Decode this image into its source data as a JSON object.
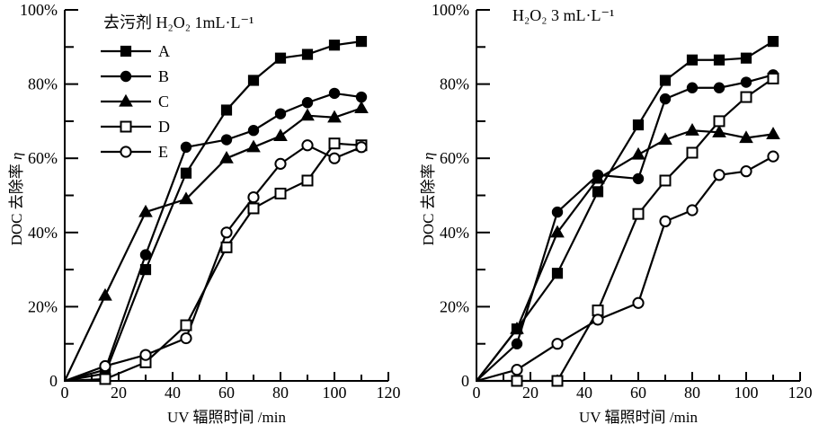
{
  "figure_name": "DOC removal rate vs UV irradiation time, two H2O2 doses",
  "colors": {
    "foreground": "#000000",
    "background": "#ffffff"
  },
  "chart_data": [
    {
      "type": "line",
      "title": "去污剂 H₂O₂ 1mL·L⁻¹",
      "xlabel": "UV 辐照时间 /min",
      "ylabel": "DOC 去除率 η",
      "xlim": [
        0,
        120
      ],
      "ylim": [
        0,
        100
      ],
      "grid": false,
      "x_tick_labels": [
        "0",
        "20",
        "40",
        "60",
        "80",
        "100",
        "120"
      ],
      "y_tick_labels": [
        "0",
        "20%",
        "40%",
        "60%",
        "80%",
        "100%"
      ],
      "x_minor_tick_step": 10,
      "legend": true,
      "legend_position": "top-left-inside",
      "x": [
        0,
        15,
        30,
        45,
        60,
        70,
        80,
        90,
        100,
        110
      ],
      "series": [
        {
          "name": "A",
          "marker": "filled-square",
          "values": [
            0,
            2,
            30,
            56,
            73,
            81,
            87,
            88,
            90.5,
            91.5
          ]
        },
        {
          "name": "B",
          "marker": "filled-circle",
          "values": [
            0,
            3,
            34,
            63,
            65,
            67.5,
            72,
            75,
            77.5,
            76.5
          ]
        },
        {
          "name": "C",
          "marker": "filled-triangle",
          "values": [
            0,
            23,
            45.5,
            49,
            60,
            63,
            66,
            71.5,
            71,
            73.5
          ]
        },
        {
          "name": "D",
          "marker": "open-square",
          "values": [
            0,
            0.5,
            5,
            15,
            36,
            46.5,
            50.5,
            54,
            64,
            63.5
          ]
        },
        {
          "name": "E",
          "marker": "open-circle",
          "values": [
            0,
            4,
            7,
            11.5,
            40,
            49.5,
            58.5,
            63.5,
            60,
            63
          ]
        }
      ]
    },
    {
      "type": "line",
      "title": "H₂O₂ 3 mL·L⁻¹",
      "xlabel": "UV 辐照时间 /min",
      "ylabel": "DOC 去除率 η",
      "xlim": [
        0,
        120
      ],
      "ylim": [
        0,
        100
      ],
      "grid": false,
      "x_tick_labels": [
        "0",
        "20",
        "40",
        "60",
        "80",
        "100",
        "120"
      ],
      "y_tick_labels": [
        "0",
        "20%",
        "40%",
        "60%",
        "80%",
        "100%"
      ],
      "x_minor_tick_step": 10,
      "legend": false,
      "x": [
        0,
        15,
        30,
        45,
        60,
        70,
        80,
        90,
        100,
        110
      ],
      "series": [
        {
          "name": "A",
          "marker": "filled-square",
          "values": [
            0,
            14,
            29,
            51,
            69,
            81,
            86.5,
            86.5,
            87,
            91.5
          ]
        },
        {
          "name": "B",
          "marker": "filled-circle",
          "values": [
            0,
            10,
            45.5,
            55.5,
            54.5,
            76,
            79,
            79,
            80.5,
            82.5
          ]
        },
        {
          "name": "C",
          "marker": "filled-triangle",
          "values": [
            0,
            14,
            40,
            54.5,
            61,
            65,
            67.5,
            67,
            65.5,
            66.5
          ]
        },
        {
          "name": "D",
          "marker": "open-square",
          "values": [
            0,
            0,
            0,
            19,
            45,
            54,
            61.5,
            70,
            76.5,
            81.5
          ]
        },
        {
          "name": "E",
          "marker": "open-circle",
          "values": [
            0,
            3,
            10,
            16.5,
            21,
            43,
            46,
            55.5,
            56.5,
            60.5
          ]
        }
      ]
    }
  ]
}
